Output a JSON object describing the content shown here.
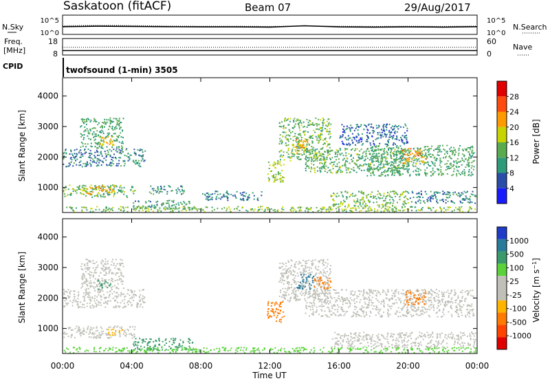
{
  "header": {
    "site": "Saskatoon (fitACF)",
    "beam": "Beam 07",
    "date": "29/Aug/2017"
  },
  "noise_panel": {
    "left_label": "N.Sky",
    "left_ticks": [
      "10^5",
      "10^0"
    ],
    "right_label": "N.Search",
    "right_ticks": [
      "10^5",
      "10^0"
    ]
  },
  "freq_panel": {
    "left_label_1": "Freq.",
    "left_label_2": "[MHz]",
    "left_ticks": [
      "18",
      "8"
    ],
    "right_label": "Nave",
    "right_ticks": [
      "60",
      "0"
    ]
  },
  "cpid_panel": {
    "label": "CPID",
    "text": "twofsound (1-min) 3505"
  },
  "colors": {
    "power_scale": [
      "#1a1aff",
      "#2a4da8",
      "#2e9a7a",
      "#5aaa50",
      "#c8d400",
      "#ff9a00",
      "#ff4a10",
      "#e00000"
    ],
    "velocity_scale": [
      "#1e3cc8",
      "#2a7a9a",
      "#3a9a6a",
      "#5ad23a",
      "#c0c0b8",
      "#c0c0b8",
      "#ffb400",
      "#ff7a00",
      "#ff4400",
      "#e00000"
    ]
  },
  "chart_data": [
    {
      "type": "line",
      "name": "noise",
      "x": [
        0,
        2,
        4,
        6,
        8,
        10,
        12,
        14,
        16,
        18,
        20,
        22,
        24
      ],
      "series": [
        {
          "name": "N.Sky",
          "values": [
            3.2,
            3.4,
            3.3,
            3.2,
            3.1,
            3.1,
            3.0,
            3.6,
            3.1,
            3.0,
            3.1,
            3.0,
            3.2
          ]
        },
        {
          "name": "N.Search",
          "values": [
            3.6,
            3.8,
            3.7,
            3.5,
            3.4,
            3.4,
            3.3,
            3.5,
            3.4,
            3.3,
            3.4,
            3.3,
            3.5
          ]
        }
      ]
    },
    {
      "type": "line",
      "name": "frequency",
      "x": [
        0,
        24
      ],
      "series": [
        {
          "name": "Freq.",
          "values": [
            10.5,
            10.5
          ]
        },
        {
          "name": "Nave",
          "values": [
            28,
            28
          ]
        }
      ]
    },
    {
      "type": "heatmap",
      "name": "power",
      "xlabel": "",
      "ylabel": "Slant Range [km]",
      "xlim": [
        0,
        24
      ],
      "ylim": [
        180,
        4600
      ],
      "yticks": [
        "1000",
        "2000",
        "3000",
        "4000"
      ],
      "colorbar": {
        "label": "Power [dB]",
        "ticks": [
          "4",
          "8",
          "12",
          "16",
          "20",
          "24",
          "28"
        ],
        "range": [
          0,
          30
        ]
      },
      "regions": [
        {
          "t": [
            0,
            4.8
          ],
          "r": [
            1700,
            2300
          ],
          "v": 9
        },
        {
          "t": [
            1.0,
            3.5
          ],
          "r": [
            2300,
            3300
          ],
          "v": 12
        },
        {
          "t": [
            2.0,
            3.0
          ],
          "r": [
            2400,
            2700
          ],
          "v": 20
        },
        {
          "t": [
            0,
            4.2
          ],
          "r": [
            700,
            1100
          ],
          "v": 13
        },
        {
          "t": [
            1.0,
            3.0
          ],
          "r": [
            800,
            1100
          ],
          "v": 21
        },
        {
          "t": [
            4.0,
            7.5
          ],
          "r": [
            300,
            600
          ],
          "v": 11
        },
        {
          "t": [
            5.0,
            7.0
          ],
          "r": [
            800,
            1100
          ],
          "v": 10
        },
        {
          "t": [
            0,
            24
          ],
          "r": [
            180,
            400
          ],
          "v": 15
        },
        {
          "t": [
            8.0,
            11.5
          ],
          "r": [
            600,
            900
          ],
          "v": 8
        },
        {
          "t": [
            11.8,
            12.8
          ],
          "r": [
            1200,
            1900
          ],
          "v": 16
        },
        {
          "t": [
            12.5,
            15.5
          ],
          "r": [
            1900,
            3300
          ],
          "v": 14
        },
        {
          "t": [
            13.2,
            14.2
          ],
          "r": [
            2100,
            2600
          ],
          "v": 21
        },
        {
          "t": [
            14.0,
            20.0
          ],
          "r": [
            1500,
            2300
          ],
          "v": 13
        },
        {
          "t": [
            17.5,
            23.8
          ],
          "r": [
            1400,
            2400
          ],
          "v": 12
        },
        {
          "t": [
            19.6,
            21.0
          ],
          "r": [
            1800,
            2300
          ],
          "v": 22
        },
        {
          "t": [
            15.5,
            20.0
          ],
          "r": [
            400,
            900
          ],
          "v": 14
        },
        {
          "t": [
            20.0,
            24.0
          ],
          "r": [
            500,
            900
          ],
          "v": 9
        },
        {
          "t": [
            16.0,
            20.0
          ],
          "r": [
            2400,
            3100
          ],
          "v": 7
        }
      ]
    },
    {
      "type": "heatmap",
      "name": "velocity",
      "xlabel": "Time UT",
      "ylabel": "Slant Range [km]",
      "xlim": [
        0,
        24
      ],
      "ylim": [
        180,
        4600
      ],
      "xticks": [
        "00:00",
        "04:00",
        "08:00",
        "12:00",
        "16:00",
        "20:00",
        "00:00"
      ],
      "yticks": [
        "1000",
        "2000",
        "3000",
        "4000"
      ],
      "colorbar": {
        "label": "Velocity [m s^-1]",
        "ticks": [
          "1000",
          "500",
          "100",
          "25",
          "-25",
          "-100",
          "-500",
          "-1000"
        ]
      },
      "regions": [
        {
          "t": [
            0,
            4.8
          ],
          "r": [
            1700,
            2300
          ],
          "v": 0
        },
        {
          "t": [
            1.0,
            3.5
          ],
          "r": [
            2300,
            3300
          ],
          "v": 0
        },
        {
          "t": [
            2.0,
            2.8
          ],
          "r": [
            2300,
            2600
          ],
          "v": 120
        },
        {
          "t": [
            0,
            4.2
          ],
          "r": [
            700,
            1100
          ],
          "v": 0
        },
        {
          "t": [
            2.5,
            3.5
          ],
          "r": [
            800,
            1000
          ],
          "v": -90
        },
        {
          "t": [
            4.0,
            7.5
          ],
          "r": [
            300,
            700
          ],
          "v": 140
        },
        {
          "t": [
            0,
            24
          ],
          "r": [
            180,
            400
          ],
          "v": 60
        },
        {
          "t": [
            11.8,
            12.8
          ],
          "r": [
            1200,
            1900
          ],
          "v": -300
        },
        {
          "t": [
            12.5,
            15.5
          ],
          "r": [
            1900,
            3300
          ],
          "v": 0
        },
        {
          "t": [
            13.5,
            14.5
          ],
          "r": [
            2300,
            2800
          ],
          "v": 800
        },
        {
          "t": [
            14.5,
            15.5
          ],
          "r": [
            2300,
            2700
          ],
          "v": -250
        },
        {
          "t": [
            14.0,
            23.8
          ],
          "r": [
            1400,
            2300
          ],
          "v": 0
        },
        {
          "t": [
            19.8,
            21.0
          ],
          "r": [
            1800,
            2300
          ],
          "v": -300
        },
        {
          "t": [
            15.5,
            24.0
          ],
          "r": [
            400,
            900
          ],
          "v": 0
        }
      ]
    }
  ]
}
